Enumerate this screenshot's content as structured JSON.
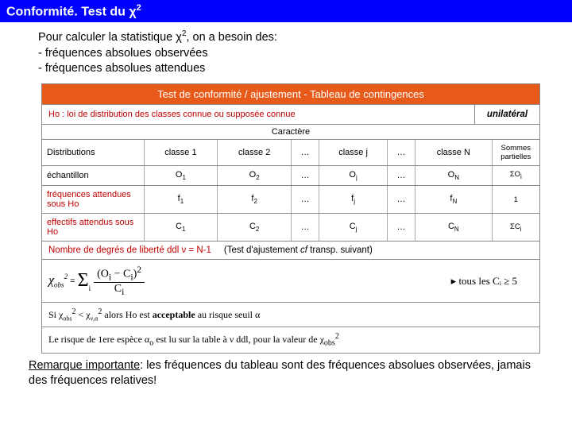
{
  "header": {
    "title_prefix": "Conformité. Test du ",
    "chi": "χ",
    "sup": "2"
  },
  "intro": {
    "line1a": "Pour calculer la statistique ",
    "chi": "χ",
    "sup": "2",
    "line1b": ", on a besoin des:",
    "line2": "- fréquences absolues observées",
    "line3": "- fréquences absolues attendues"
  },
  "diagram": {
    "title": "Test de conformité / ajustement - Tableau de contingences",
    "ho": "Ho : loi de distribution des classes connue ou supposée connue",
    "unilateral": "unilatéral",
    "caractere": "Caractère",
    "cols": [
      "Distributions",
      "classe 1",
      "classe 2",
      "…",
      "classe j",
      "…",
      "classe N",
      "Sommes partielles"
    ],
    "row1": [
      "échantillon",
      "O₁",
      "O₂",
      "…",
      "Oⱼ",
      "…",
      "O_N",
      "ΣOᵢ"
    ],
    "row2": [
      "fréquences attendues sous Ho",
      "f₁",
      "f₂",
      "…",
      "fⱼ",
      "…",
      "f_N",
      "1"
    ],
    "row3": [
      "effectifs attendus sous Ho",
      "C₁",
      "C₂",
      "…",
      "Cⱼ",
      "…",
      "C_N",
      "ΣCᵢ"
    ],
    "ddl_a": "Nombre de degrés de liberté ddl ν = N-1",
    "ddl_b": "(Test d'ajustement ",
    "ddl_i": "cf",
    "ddl_c": " transp. suivant)",
    "formula_chi": "χ",
    "formula_obs": "obs",
    "formula_top": "(Oᵢ − Cᵢ)²",
    "formula_bot": "Cᵢ",
    "constraint": "▸ tous les Cᵢ ≥ 5",
    "rule1a": "Si χ",
    "rule1b": " < χ",
    "rule1c": " alors Ho est ",
    "rule1_acc": "acceptable",
    "rule1d": " au risque seuil α",
    "rule2a": "Le risque de 1ere espèce α",
    "rule2b": " est lu sur la table à ν ddl, pour la valeur de χ"
  },
  "remark": {
    "label": "Remarque importante",
    "text": ": les fréquences du tableau sont des fréquences absolues observées, jamais des fréquences relatives!"
  },
  "colors": {
    "header_bg": "#0000ff",
    "diag_title_bg": "#e85a1a",
    "red_text": "#c00000"
  }
}
